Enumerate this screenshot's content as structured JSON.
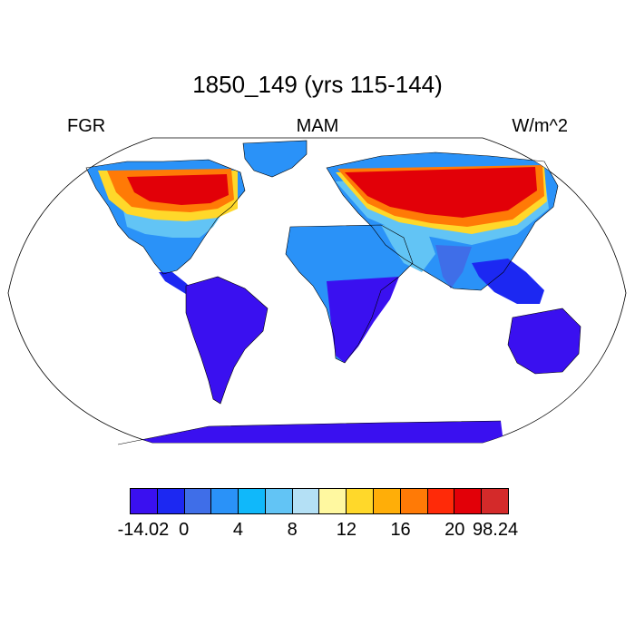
{
  "title": "1850_149 (yrs 115-144)",
  "left_label": "FGR",
  "center_label": "MAM",
  "right_label": "W/m^2",
  "colorbar": {
    "colors": [
      "#3a10f0",
      "#1c28f2",
      "#3f6ee8",
      "#2a92f8",
      "#10b8fa",
      "#62c4f5",
      "#b4e0f5",
      "#fff8a0",
      "#ffd82a",
      "#ffae08",
      "#ff7a06",
      "#ff2a08",
      "#e20008",
      "#d42a2a"
    ],
    "labels": [
      "-14.02",
      "0",
      "4",
      "8",
      "12",
      "16",
      "20",
      "98.24"
    ]
  },
  "map_fill_colors": {
    "ocean": "#ffffff",
    "land_south": "#3a10f0",
    "land_cool": "#2a92f8",
    "land_mild": "#62c4f5",
    "land_warm": "#ffd82a",
    "land_hot": "#ff7a06",
    "land_veryhot": "#e20008"
  }
}
